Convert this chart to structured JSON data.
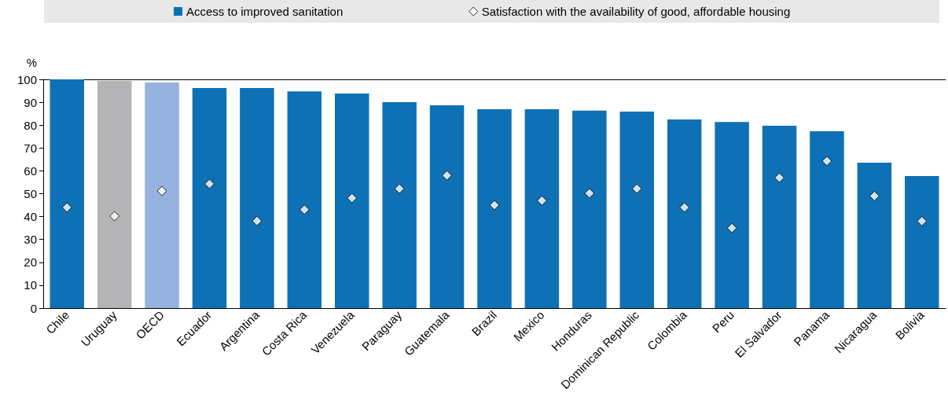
{
  "chart_data": {
    "type": "bar",
    "ylabel": "%",
    "categories": [
      "Chile",
      "Uruguay",
      "OECD",
      "Ecuador",
      "Argentina",
      "Costa Rica",
      "Venezuela",
      "Paraguay",
      "Guatemala",
      "Brazil",
      "Mexico",
      "Honduras",
      "Dominican Republic",
      "Colombia",
      "Peru",
      "El Salvador",
      "Panama",
      "Nicaragua",
      "Bolivia"
    ],
    "series": [
      {
        "name": "Access to improved sanitation",
        "color": "#0f71b5",
        "colors": [
          "#0f71b5",
          "#b4b4b6",
          "#95b3de",
          "#0f71b5",
          "#0f71b5",
          "#0f71b5",
          "#0f71b5",
          "#0f71b5",
          "#0f71b5",
          "#0f71b5",
          "#0f71b5",
          "#0f71b5",
          "#0f71b5",
          "#0f71b5",
          "#0f71b5",
          "#0f71b5",
          "#0f71b5",
          "#0f71b5",
          "#0f71b5"
        ],
        "values": [
          100,
          99.3,
          98.6,
          96.2,
          96.2,
          94.8,
          93.8,
          90,
          88.7,
          86.9,
          86.9,
          86.3,
          85.9,
          82.5,
          81.4,
          79.7,
          77.3,
          63.6,
          57.7
        ]
      },
      {
        "name": "Satisfaction with the availability of good, affordable housing",
        "type": "scatter",
        "marker": "diamond",
        "color": "#ffffff",
        "values": [
          44,
          40.2,
          51.2,
          54.3,
          38.1,
          43,
          48.1,
          52.2,
          58,
          45,
          47,
          50.2,
          52.2,
          44,
          35,
          57,
          64.3,
          49,
          38
        ]
      }
    ],
    "ylim": [
      0,
      100
    ],
    "yticks": [
      0,
      10,
      20,
      30,
      40,
      50,
      60,
      70,
      80,
      90,
      100
    ],
    "grid": false,
    "legend": "top"
  }
}
